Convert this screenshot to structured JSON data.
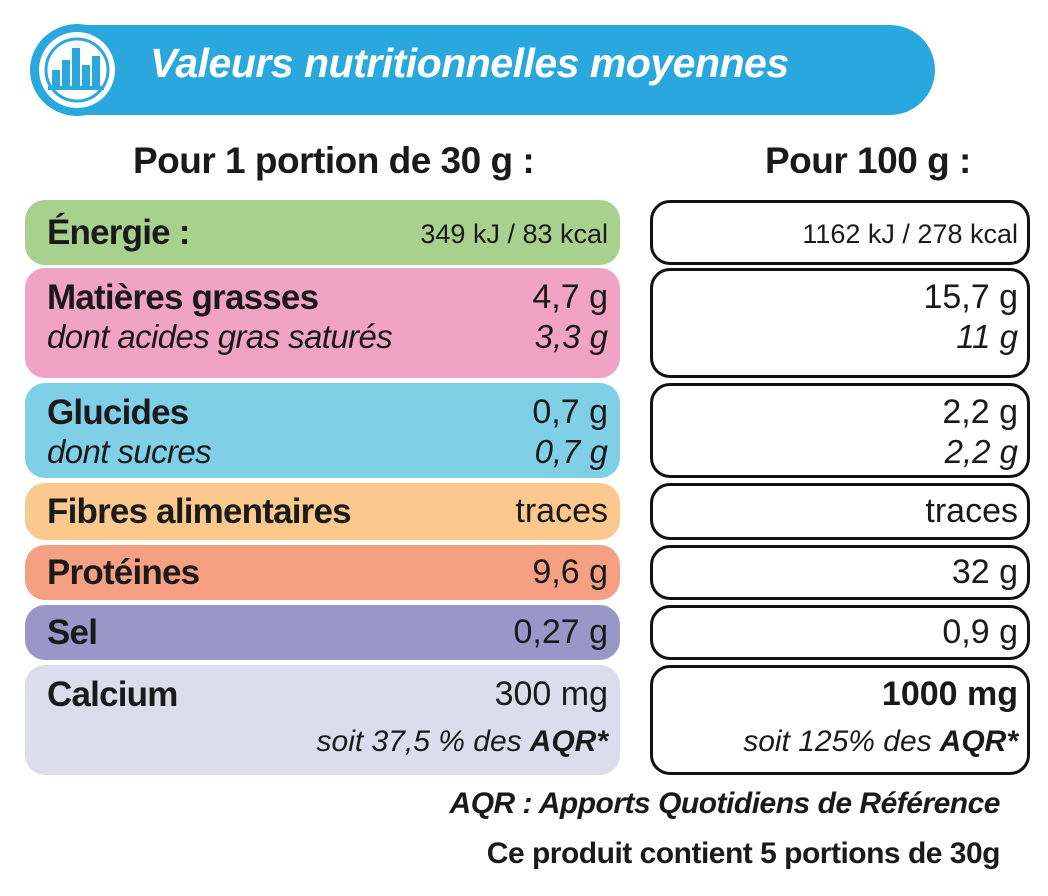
{
  "header": {
    "title": "Valeurs nutritionnelles moyennes"
  },
  "columns": [
    "Pour 1 portion de 30 g :",
    "Pour 100 g :"
  ],
  "rows": [
    {
      "label": "Énergie :",
      "per_portion": "349 kJ / 83 kcal",
      "per_100g": "1162 kJ / 278 kcal"
    },
    {
      "label": "Matières grasses",
      "per_portion": "4,7 g",
      "per_100g": "15,7 g",
      "sub": {
        "label": "dont acides gras saturés",
        "per_portion": "3,3 g",
        "per_100g": "11 g"
      }
    },
    {
      "label": "Glucides",
      "per_portion": "0,7 g",
      "per_100g": "2,2 g",
      "sub": {
        "label": "dont sucres",
        "per_portion": "0,7 g",
        "per_100g": "2,2 g"
      }
    },
    {
      "label": "Fibres alimentaires",
      "per_portion": "traces",
      "per_100g": "traces"
    },
    {
      "label": "Protéines",
      "per_portion": "9,6 g",
      "per_100g": "32 g"
    },
    {
      "label": "Sel",
      "per_portion": "0,27 g",
      "per_100g": "0,9 g"
    },
    {
      "label": "Calcium",
      "per_portion": "300 mg",
      "per_100g": "1000 mg",
      "sub": {
        "per_portion": {
          "text": "soit 37,5 % des",
          "emphasis": "AQR*"
        },
        "per_100g": {
          "text": "soit 125% des",
          "emphasis": "AQR*"
        }
      }
    }
  ],
  "footer": {
    "note": "AQR : Apports Quotidiens de Référence",
    "portions": "Ce produit contient 5 portions de 30g"
  }
}
